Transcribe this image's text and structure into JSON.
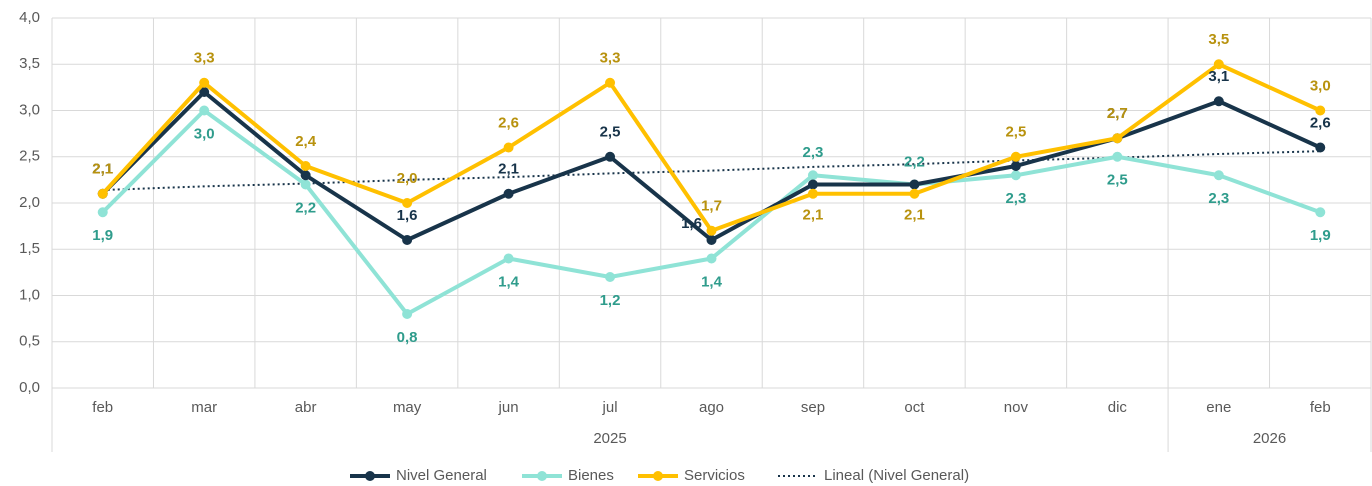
{
  "chart_data": {
    "type": "line",
    "categories": [
      "feb",
      "mar",
      "abr",
      "may",
      "jun",
      "jul",
      "ago",
      "sep",
      "oct",
      "nov",
      "dic",
      "ene",
      "feb"
    ],
    "category_groups": [
      {
        "label": "2025",
        "count": 11
      },
      {
        "label": "2026",
        "count": 2
      }
    ],
    "series": [
      {
        "name": "Bienes",
        "color": "#8fe3d6",
        "label_color": "#2f9c8c",
        "values": [
          1.9,
          3.0,
          2.2,
          0.8,
          1.4,
          1.2,
          1.4,
          2.3,
          2.2,
          2.3,
          2.5,
          2.3,
          1.9
        ],
        "value_labels": [
          "1,9",
          "3,0",
          "2,2",
          "0,8",
          "1,4",
          "1,2",
          "1,4",
          "2,3",
          "2,2",
          "2,3",
          "2,5",
          "2,3",
          "1,9"
        ]
      },
      {
        "name": "Nivel General",
        "color": "#18344a",
        "label_color": "#18344a",
        "values": [
          2.1,
          3.2,
          2.3,
          1.6,
          2.1,
          2.5,
          1.6,
          2.2,
          2.2,
          2.4,
          2.7,
          3.1,
          2.6
        ],
        "value_labels": [
          "2,1",
          null,
          null,
          "1,6",
          "2,1",
          "2,5",
          "1,6",
          null,
          null,
          null,
          "2,7",
          "3,1",
          "2,6"
        ]
      },
      {
        "name": "Servicios",
        "color": "#ffc000",
        "label_color": "#b8920e",
        "values": [
          2.1,
          3.3,
          2.4,
          2.0,
          2.6,
          3.3,
          1.7,
          2.1,
          2.1,
          2.5,
          2.7,
          3.5,
          3.0
        ],
        "value_labels": [
          "2,1",
          "3,3",
          "2,4",
          "2,0",
          "2,6",
          "3,3",
          "1,7",
          "2,1",
          "2,1",
          "2,5",
          "2,7",
          "3,5",
          "3,0"
        ]
      }
    ],
    "trend": {
      "name": "Lineal (Nivel General)",
      "color": "#18344a",
      "values": [
        2.14,
        2.18,
        2.21,
        2.25,
        2.28,
        2.32,
        2.35,
        2.39,
        2.42,
        2.46,
        2.49,
        2.53,
        2.56
      ]
    },
    "legend_order": [
      1,
      0,
      2
    ],
    "ylim": [
      0,
      4
    ],
    "yticks": [
      {
        "value": 0,
        "label": "0,0"
      },
      {
        "value": 0.5,
        "label": "0,5"
      },
      {
        "value": 1,
        "label": "1,0"
      },
      {
        "value": 1.5,
        "label": "1,5"
      },
      {
        "value": 2,
        "label": "2,0"
      },
      {
        "value": 2.5,
        "label": "2,5"
      },
      {
        "value": 3,
        "label": "3,0"
      },
      {
        "value": 3.5,
        "label": "3,5"
      },
      {
        "value": 4,
        "label": "4,0"
      }
    ],
    "grid": true,
    "legend": "bottom"
  }
}
